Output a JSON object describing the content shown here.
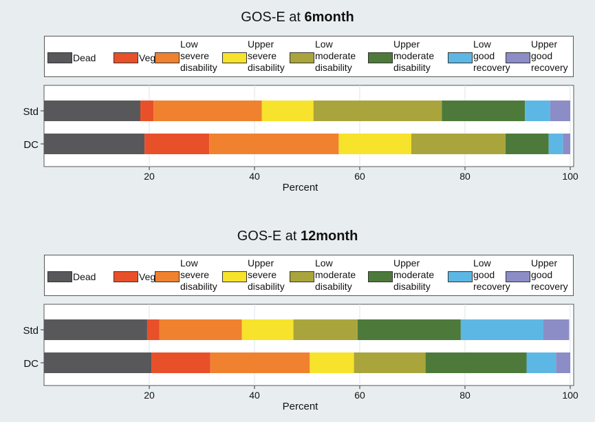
{
  "chart_data": [
    {
      "type": "bar",
      "orientation": "horizontal",
      "stacked": true,
      "title_prefix": "GOS-E at ",
      "title_bold": "6month",
      "xlabel": "Percent",
      "ylabel": "",
      "xlim": [
        0,
        100
      ],
      "xticks": [
        20,
        40,
        60,
        80,
        100
      ],
      "grid": true,
      "legend_position": "top",
      "categories": [
        "Std",
        "DC"
      ],
      "series": [
        {
          "name": "Dead",
          "color": "#58585a",
          "values": [
            18.3,
            19.1
          ]
        },
        {
          "name": "Veg",
          "color": "#e8502a",
          "values": [
            2.5,
            12.3
          ]
        },
        {
          "name": "Low severe disability",
          "color": "#f0812e",
          "values": [
            20.6,
            24.6
          ]
        },
        {
          "name": "Upper severe disability",
          "color": "#f7e22c",
          "values": [
            9.8,
            13.8
          ]
        },
        {
          "name": "Low moderate disability",
          "color": "#a9a53c",
          "values": [
            24.4,
            17.9
          ]
        },
        {
          "name": "Upper moderate disability",
          "color": "#4d7a3a",
          "values": [
            15.8,
            8.2
          ]
        },
        {
          "name": "Low good recovery",
          "color": "#5db7e4",
          "values": [
            4.8,
            2.7
          ]
        },
        {
          "name": "Upper good recovery",
          "color": "#8c8cc6",
          "values": [
            3.8,
            1.4
          ]
        }
      ]
    },
    {
      "type": "bar",
      "orientation": "horizontal",
      "stacked": true,
      "title_prefix": "GOS-E at ",
      "title_bold": "12month",
      "xlabel": "Percent",
      "ylabel": "",
      "xlim": [
        0,
        100
      ],
      "xticks": [
        20,
        40,
        60,
        80,
        100
      ],
      "grid": true,
      "legend_position": "top",
      "categories": [
        "Std",
        "DC"
      ],
      "series": [
        {
          "name": "Dead",
          "color": "#58585a",
          "values": [
            19.6,
            20.4
          ]
        },
        {
          "name": "Veg",
          "color": "#e8502a",
          "values": [
            2.3,
            11.2
          ]
        },
        {
          "name": "Low severe disability",
          "color": "#f0812e",
          "values": [
            15.7,
            18.9
          ]
        },
        {
          "name": "Upper severe disability",
          "color": "#f7e22c",
          "values": [
            9.8,
            8.4
          ]
        },
        {
          "name": "Low moderate disability",
          "color": "#a9a53c",
          "values": [
            12.2,
            13.6
          ]
        },
        {
          "name": "Upper moderate disability",
          "color": "#4d7a3a",
          "values": [
            19.6,
            19.2
          ]
        },
        {
          "name": "Low good recovery",
          "color": "#5db7e4",
          "values": [
            15.7,
            5.6
          ]
        },
        {
          "name": "Upper good recovery",
          "color": "#8c8cc6",
          "values": [
            4.9,
            2.7
          ]
        }
      ]
    }
  ],
  "legend_label_lines": [
    [
      "Dead"
    ],
    [
      "Veg"
    ],
    [
      "Low",
      "severe",
      "disability"
    ],
    [
      "Upper",
      "severe",
      "disability"
    ],
    [
      "Low",
      "moderate",
      "disability"
    ],
    [
      "Upper",
      "moderate",
      "disability"
    ],
    [
      "Low",
      "good",
      "recovery"
    ],
    [
      "Upper",
      "good",
      "recovery"
    ]
  ]
}
